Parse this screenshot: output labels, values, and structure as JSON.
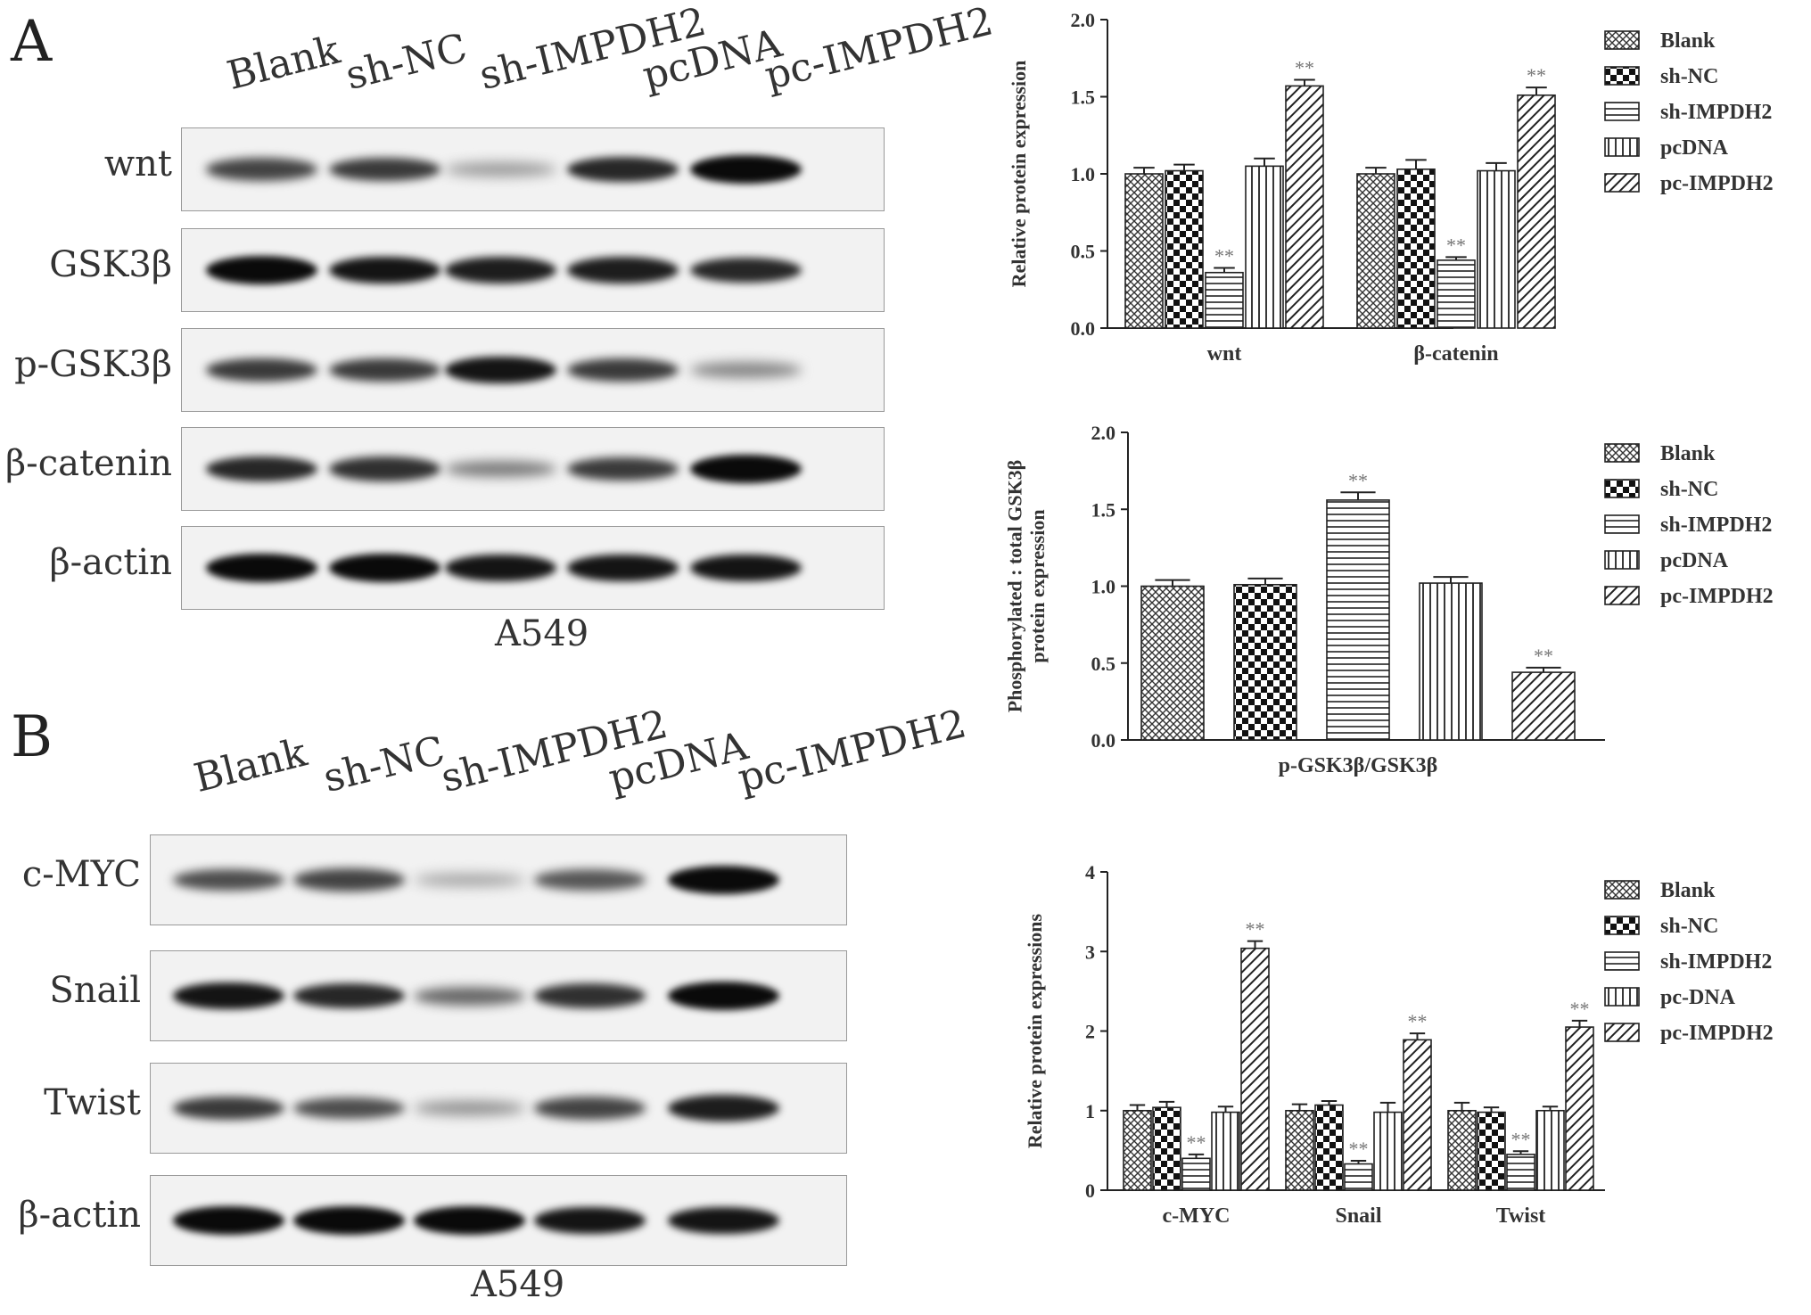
{
  "panels": {
    "a_letter": "A",
    "b_letter": "B"
  },
  "blot_a": {
    "lanes": [
      "Blank",
      "sh-NC",
      "sh-IMPDH2",
      "pcDNA",
      "pc-IMPDH2"
    ],
    "rows": [
      {
        "label": "wnt",
        "intensity": [
          0.7,
          0.75,
          0.25,
          0.85,
          1.0
        ]
      },
      {
        "label": "GSK3β",
        "intensity": [
          1.0,
          0.95,
          0.9,
          0.9,
          0.85
        ]
      },
      {
        "label": "p-GSK3β",
        "intensity": [
          0.75,
          0.75,
          0.95,
          0.75,
          0.35
        ]
      },
      {
        "label": "β-catenin",
        "intensity": [
          0.85,
          0.8,
          0.4,
          0.75,
          1.0
        ]
      },
      {
        "label": "β-actin",
        "intensity": [
          1.0,
          1.0,
          0.95,
          0.95,
          0.95
        ]
      }
    ],
    "cell_line": "A549"
  },
  "blot_b": {
    "lanes": [
      "Blank",
      "sh-NC",
      "sh-IMPDH2",
      "pcDNA",
      "pc-IMPDH2"
    ],
    "rows": [
      {
        "label": "c-MYC",
        "intensity": [
          0.65,
          0.7,
          0.2,
          0.6,
          1.0
        ]
      },
      {
        "label": "Snail",
        "intensity": [
          0.95,
          0.85,
          0.5,
          0.8,
          1.0
        ]
      },
      {
        "label": "Twist",
        "intensity": [
          0.75,
          0.65,
          0.3,
          0.7,
          0.9
        ]
      },
      {
        "label": "β-actin",
        "intensity": [
          1.0,
          1.0,
          1.0,
          0.95,
          0.95
        ]
      }
    ],
    "cell_line": "A549"
  },
  "chart_data": [
    {
      "type": "bar",
      "ylabel": "Relative protein expression",
      "categories": [
        "wnt",
        "β-catenin"
      ],
      "yticks": [
        "0.0",
        "0.5",
        "1.0",
        "1.5",
        "2.0"
      ],
      "ylim": [
        0,
        2.0
      ],
      "series": [
        {
          "name": "Blank",
          "values": [
            1.0,
            1.0
          ],
          "errors": [
            0.04,
            0.04
          ],
          "pattern": "cross"
        },
        {
          "name": "sh-NC",
          "values": [
            1.02,
            1.03
          ],
          "errors": [
            0.04,
            0.06
          ],
          "pattern": "check"
        },
        {
          "name": "sh-IMPDH2",
          "values": [
            0.36,
            0.44
          ],
          "errors": [
            0.03,
            0.02
          ],
          "pattern": "hline"
        },
        {
          "name": "pcDNA",
          "values": [
            1.05,
            1.02
          ],
          "errors": [
            0.05,
            0.05
          ],
          "pattern": "vline"
        },
        {
          "name": "pc-IMPDH2",
          "values": [
            1.57,
            1.51
          ],
          "errors": [
            0.04,
            0.05
          ],
          "pattern": "diag"
        }
      ],
      "significance": [
        [
          null,
          null,
          "**",
          null,
          "**"
        ],
        [
          null,
          null,
          "**",
          null,
          "**"
        ]
      ],
      "legend_position": "right"
    },
    {
      "type": "bar",
      "ylabel": "Phosphorylated : total GSK3β protein expression",
      "categories": [
        "p-GSK3β/GSK3β"
      ],
      "yticks": [
        "0.0",
        "0.5",
        "1.0",
        "1.5",
        "2.0"
      ],
      "ylim": [
        0,
        2.0
      ],
      "series": [
        {
          "name": "Blank",
          "values": [
            1.0
          ],
          "errors": [
            0.04
          ],
          "pattern": "cross"
        },
        {
          "name": "sh-NC",
          "values": [
            1.01
          ],
          "errors": [
            0.04
          ],
          "pattern": "check"
        },
        {
          "name": "sh-IMPDH2",
          "values": [
            1.56
          ],
          "errors": [
            0.05
          ],
          "pattern": "hline"
        },
        {
          "name": "pcDNA",
          "values": [
            1.02
          ],
          "errors": [
            0.04
          ],
          "pattern": "vline"
        },
        {
          "name": "pc-IMPDH2",
          "values": [
            0.44
          ],
          "errors": [
            0.03
          ],
          "pattern": "diag"
        }
      ],
      "significance": [
        [
          null,
          null,
          "**",
          null,
          "**"
        ]
      ],
      "legend_position": "right"
    },
    {
      "type": "bar",
      "ylabel": "Relative protein expressions",
      "categories": [
        "c-MYC",
        "Snail",
        "Twist"
      ],
      "yticks": [
        "0",
        "1",
        "2",
        "3",
        "4"
      ],
      "ylim": [
        0,
        4
      ],
      "series": [
        {
          "name": "Blank",
          "values": [
            1.0,
            1.0,
            1.0
          ],
          "errors": [
            0.07,
            0.08,
            0.1
          ],
          "pattern": "cross"
        },
        {
          "name": "sh-NC",
          "values": [
            1.04,
            1.07,
            0.98
          ],
          "errors": [
            0.07,
            0.05,
            0.06
          ],
          "pattern": "check"
        },
        {
          "name": "sh-IMPDH2",
          "values": [
            0.4,
            0.33,
            0.45
          ],
          "errors": [
            0.05,
            0.04,
            0.04
          ],
          "pattern": "hline"
        },
        {
          "name": "pc-DNA",
          "values": [
            0.98,
            0.98,
            1.0
          ],
          "errors": [
            0.07,
            0.12,
            0.05
          ],
          "pattern": "vline"
        },
        {
          "name": "pc-IMPDH2",
          "values": [
            3.04,
            1.89,
            2.05
          ],
          "errors": [
            0.09,
            0.08,
            0.08
          ],
          "pattern": "diag"
        }
      ],
      "significance": [
        [
          null,
          null,
          "**",
          null,
          "**"
        ],
        [
          null,
          null,
          "**",
          null,
          "**"
        ],
        [
          null,
          null,
          "**",
          null,
          "**"
        ]
      ],
      "legend_position": "right"
    }
  ]
}
